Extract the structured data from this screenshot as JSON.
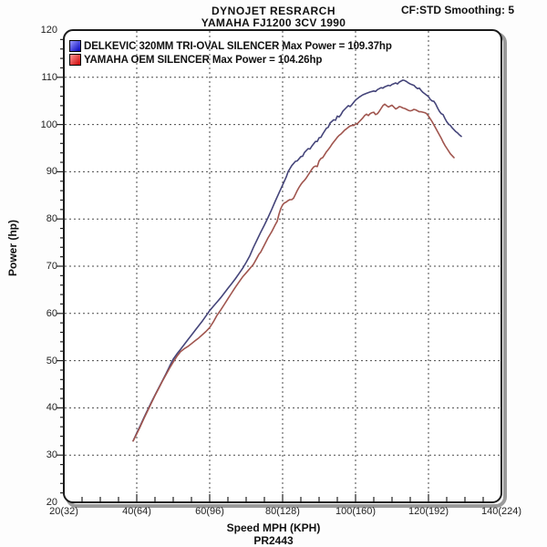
{
  "header": {
    "title_line1": "DYNOJET RESRARCH",
    "title_line2": "YAMAHA FJ1200 3CV 1990",
    "smoothing": "CF:STD Smoothing: 5"
  },
  "footer": {
    "run_id": "PR2443"
  },
  "legend": [
    {
      "label": "DELKEVIC 320MM TRI-OVAL SILENCER  Max Power  = 109.37hp",
      "swatch_colors": [
        "#9a9aff",
        "#0000bb"
      ]
    },
    {
      "label": "YAMAHA OEM SILENCER Max Power = 104.26hp",
      "swatch_colors": [
        "#ff9a9a",
        "#cc0000"
      ]
    }
  ],
  "chart_data": {
    "type": "line",
    "title": "DYNOJET RESRARCH - YAMAHA FJ1200 3CV 1990",
    "xlabel": "Speed MPH (KPH)",
    "ylabel": "Power (hp)",
    "xlim": [
      20,
      140
    ],
    "ylim": [
      20,
      120
    ],
    "grid": true,
    "legend_position": "top-left inside",
    "x_axis": {
      "major_step": 20,
      "minor_step": 5,
      "tick_labels": [
        "20(32)",
        "40(64)",
        "60(96)",
        "80(128)",
        "100(160)",
        "120(192)",
        "140(224)"
      ],
      "tick_values": [
        20,
        40,
        60,
        80,
        100,
        120,
        140
      ]
    },
    "y_axis": {
      "major_step": 10,
      "minor_step": 2,
      "tick_labels": [
        "20",
        "30",
        "40",
        "50",
        "60",
        "70",
        "80",
        "90",
        "100",
        "110",
        "120"
      ],
      "tick_values": [
        20,
        30,
        40,
        50,
        60,
        70,
        80,
        90,
        100,
        110,
        120
      ]
    },
    "series": [
      {
        "name": "DELKEVIC 320MM TRI-OVAL SILENCER",
        "max_power_hp": 109.37,
        "color": "#45457a",
        "points": [
          [
            39,
            33
          ],
          [
            40,
            34.7
          ],
          [
            41,
            36.3
          ],
          [
            42,
            38
          ],
          [
            43,
            39.6
          ],
          [
            44,
            41.2
          ],
          [
            45,
            42.7
          ],
          [
            46,
            44.2
          ],
          [
            47,
            45.7
          ],
          [
            48,
            47.2
          ],
          [
            49,
            48.8
          ],
          [
            50,
            50.3
          ],
          [
            51,
            51.4
          ],
          [
            52,
            52.4
          ],
          [
            53,
            53.4
          ],
          [
            54,
            54.4
          ],
          [
            55,
            55.4
          ],
          [
            56,
            56.4
          ],
          [
            57,
            57.4
          ],
          [
            58,
            58.4
          ],
          [
            59,
            59.5
          ],
          [
            60,
            60.6
          ],
          [
            61,
            61.5
          ],
          [
            62,
            62.4
          ],
          [
            63,
            63.3
          ],
          [
            64,
            64.3
          ],
          [
            65,
            65.3
          ],
          [
            66,
            66.3
          ],
          [
            67,
            67.3
          ],
          [
            68,
            68.4
          ],
          [
            69,
            69.5
          ],
          [
            70,
            70.8
          ],
          [
            71,
            72.2
          ],
          [
            72,
            74
          ],
          [
            73,
            75.6
          ],
          [
            74,
            77.2
          ],
          [
            75,
            78.7
          ],
          [
            76,
            80.3
          ],
          [
            77,
            82
          ],
          [
            78,
            83.8
          ],
          [
            79,
            85.5
          ],
          [
            80,
            87.2
          ],
          [
            81,
            88.9
          ],
          [
            81.5,
            90
          ],
          [
            82.5,
            91.3
          ],
          [
            83.5,
            92.2
          ],
          [
            84,
            92.3
          ],
          [
            85,
            93.2
          ],
          [
            85.5,
            93.3
          ],
          [
            86,
            94.1
          ],
          [
            87,
            94.9
          ],
          [
            87.5,
            94.8
          ],
          [
            88,
            95.4
          ],
          [
            89,
            96.4
          ],
          [
            89.5,
            96.4
          ],
          [
            90,
            97.2
          ],
          [
            90.5,
            97.3
          ],
          [
            91,
            98
          ],
          [
            92,
            99.2
          ],
          [
            92.5,
            99.4
          ],
          [
            93,
            100.3
          ],
          [
            94,
            101
          ],
          [
            94.5,
            100.9
          ],
          [
            95,
            101.8
          ],
          [
            95.5,
            101.6
          ],
          [
            96,
            102.1
          ],
          [
            96.5,
            102.8
          ],
          [
            97,
            103.2
          ],
          [
            98,
            104
          ],
          [
            98.5,
            103.8
          ],
          [
            99,
            104.2
          ],
          [
            100,
            105.2
          ],
          [
            101,
            105.8
          ],
          [
            102,
            106.3
          ],
          [
            103,
            106.6
          ],
          [
            104,
            106.9
          ],
          [
            105,
            107.1
          ],
          [
            105.5,
            107
          ],
          [
            106,
            107.4
          ],
          [
            107,
            107.8
          ],
          [
            107.5,
            107.7
          ],
          [
            108,
            108
          ],
          [
            109,
            108.3
          ],
          [
            109.5,
            108.2
          ],
          [
            110,
            108.5
          ],
          [
            111,
            108.8
          ],
          [
            111.5,
            108.6
          ],
          [
            112,
            109
          ],
          [
            112.5,
            109.2
          ],
          [
            113,
            109.4
          ],
          [
            113.5,
            109.3
          ],
          [
            114,
            109.1
          ],
          [
            114.5,
            108.8
          ],
          [
            115,
            108.6
          ],
          [
            116,
            108.3
          ],
          [
            116.5,
            107.9
          ],
          [
            117,
            107.6
          ],
          [
            117.5,
            107.7
          ],
          [
            118,
            107.2
          ],
          [
            118.5,
            106.8
          ],
          [
            119,
            106.5
          ],
          [
            120,
            105.9
          ],
          [
            120.5,
            105.3
          ],
          [
            121,
            105
          ],
          [
            121.5,
            104.9
          ],
          [
            122,
            104.3
          ],
          [
            122.5,
            103.5
          ],
          [
            123,
            102.8
          ],
          [
            123.5,
            102.3
          ],
          [
            124,
            102.1
          ],
          [
            124.5,
            101.3
          ],
          [
            125,
            100.6
          ],
          [
            125.5,
            100.1
          ],
          [
            126,
            99.8
          ],
          [
            126.5,
            99.3
          ],
          [
            127,
            98.9
          ],
          [
            127.5,
            98.5
          ],
          [
            128,
            98.2
          ],
          [
            128.5,
            97.8
          ],
          [
            129,
            97.5
          ]
        ]
      },
      {
        "name": "YAMAHA OEM SILENCER",
        "max_power_hp": 104.26,
        "color": "#a0554e",
        "points": [
          [
            39,
            33
          ],
          [
            40,
            34.5
          ],
          [
            41,
            36.1
          ],
          [
            42,
            37.8
          ],
          [
            43,
            39.4
          ],
          [
            44,
            41
          ],
          [
            45,
            42.6
          ],
          [
            46,
            44.1
          ],
          [
            47,
            45.6
          ],
          [
            48,
            47
          ],
          [
            49,
            48.4
          ],
          [
            50,
            49.7
          ],
          [
            51,
            50.9
          ],
          [
            52,
            51.9
          ],
          [
            53,
            52.5
          ],
          [
            54,
            53
          ],
          [
            55,
            53.6
          ],
          [
            56,
            54.2
          ],
          [
            57,
            54.8
          ],
          [
            58,
            55.5
          ],
          [
            59,
            56.2
          ],
          [
            60,
            57
          ],
          [
            61,
            58.2
          ],
          [
            62,
            59.6
          ],
          [
            63,
            60.7
          ],
          [
            64,
            61.9
          ],
          [
            65,
            63.1
          ],
          [
            66,
            64.3
          ],
          [
            67,
            65.5
          ],
          [
            68,
            66.6
          ],
          [
            69,
            67.7
          ],
          [
            70,
            68.6
          ],
          [
            71,
            69.5
          ],
          [
            72,
            70.4
          ],
          [
            73,
            71.8
          ],
          [
            73.5,
            72.5
          ],
          [
            74,
            73
          ],
          [
            75,
            74.5
          ],
          [
            76,
            76
          ],
          [
            77,
            77.3
          ],
          [
            78,
            78.8
          ],
          [
            78.5,
            79.5
          ],
          [
            79,
            81
          ],
          [
            79.5,
            82.2
          ],
          [
            80,
            83
          ],
          [
            80.5,
            83.4
          ],
          [
            81,
            83.6
          ],
          [
            81.5,
            83.9
          ],
          [
            82,
            84.1
          ],
          [
            82.5,
            84.1
          ],
          [
            83,
            84.4
          ],
          [
            83.5,
            85.2
          ],
          [
            84,
            86
          ],
          [
            84.5,
            86.7
          ],
          [
            85,
            87.3
          ],
          [
            85.5,
            87.8
          ],
          [
            86,
            88.2
          ],
          [
            86.5,
            88.7
          ],
          [
            87,
            89.3
          ],
          [
            87.5,
            89.9
          ],
          [
            88,
            90.5
          ],
          [
            88.5,
            91
          ],
          [
            89,
            91.2
          ],
          [
            89.5,
            91.1
          ],
          [
            90,
            92.3
          ],
          [
            90.5,
            92.8
          ],
          [
            91,
            93
          ],
          [
            91.5,
            93.6
          ],
          [
            92,
            94.2
          ],
          [
            92.5,
            94.7
          ],
          [
            93,
            95.2
          ],
          [
            93.5,
            95.8
          ],
          [
            94,
            96.3
          ],
          [
            94.5,
            96.8
          ],
          [
            95,
            97.3
          ],
          [
            95.5,
            97.7
          ],
          [
            96,
            98
          ],
          [
            96.5,
            98.4
          ],
          [
            97,
            98.8
          ],
          [
            97.5,
            99.1
          ],
          [
            98,
            99.4
          ],
          [
            98.5,
            99.7
          ],
          [
            99,
            99.8
          ],
          [
            99.5,
            99.8
          ],
          [
            100,
            100.1
          ],
          [
            100.5,
            100.2
          ],
          [
            101,
            100.6
          ],
          [
            101.5,
            101
          ],
          [
            102,
            101.4
          ],
          [
            102.5,
            101.9
          ],
          [
            103,
            102.2
          ],
          [
            103.5,
            101.9
          ],
          [
            104,
            102.3
          ],
          [
            104.5,
            102.5
          ],
          [
            105,
            102.6
          ],
          [
            105.5,
            102.1
          ],
          [
            106,
            102.3
          ],
          [
            106.5,
            102.8
          ],
          [
            107,
            103.4
          ],
          [
            107.5,
            104
          ],
          [
            108,
            104.3
          ],
          [
            108.5,
            104
          ],
          [
            109,
            103.7
          ],
          [
            109.5,
            103.9
          ],
          [
            110,
            104.1
          ],
          [
            110.5,
            103.7
          ],
          [
            111,
            103.3
          ],
          [
            111.5,
            103.5
          ],
          [
            112,
            103.8
          ],
          [
            112.5,
            103.7
          ],
          [
            113,
            103.5
          ],
          [
            113.5,
            103.4
          ],
          [
            114,
            103.2
          ],
          [
            114.5,
            103
          ],
          [
            115,
            102.9
          ],
          [
            115.5,
            103
          ],
          [
            116,
            103.2
          ],
          [
            116.5,
            103.1
          ],
          [
            117,
            102.9
          ],
          [
            117.5,
            102.7
          ],
          [
            118,
            102.7
          ],
          [
            118.5,
            102.6
          ],
          [
            119,
            102.5
          ],
          [
            119.5,
            102.3
          ],
          [
            120,
            101.8
          ],
          [
            120.5,
            101.2
          ],
          [
            121,
            100.6
          ],
          [
            121.5,
            99.9
          ],
          [
            122,
            99.2
          ],
          [
            122.5,
            98.5
          ],
          [
            123,
            97.8
          ],
          [
            123.5,
            97.1
          ],
          [
            124,
            96.3
          ],
          [
            124.5,
            95.6
          ],
          [
            125,
            95
          ],
          [
            125.5,
            94.4
          ],
          [
            126,
            93.8
          ],
          [
            126.5,
            93.4
          ],
          [
            127,
            93
          ]
        ]
      }
    ]
  }
}
